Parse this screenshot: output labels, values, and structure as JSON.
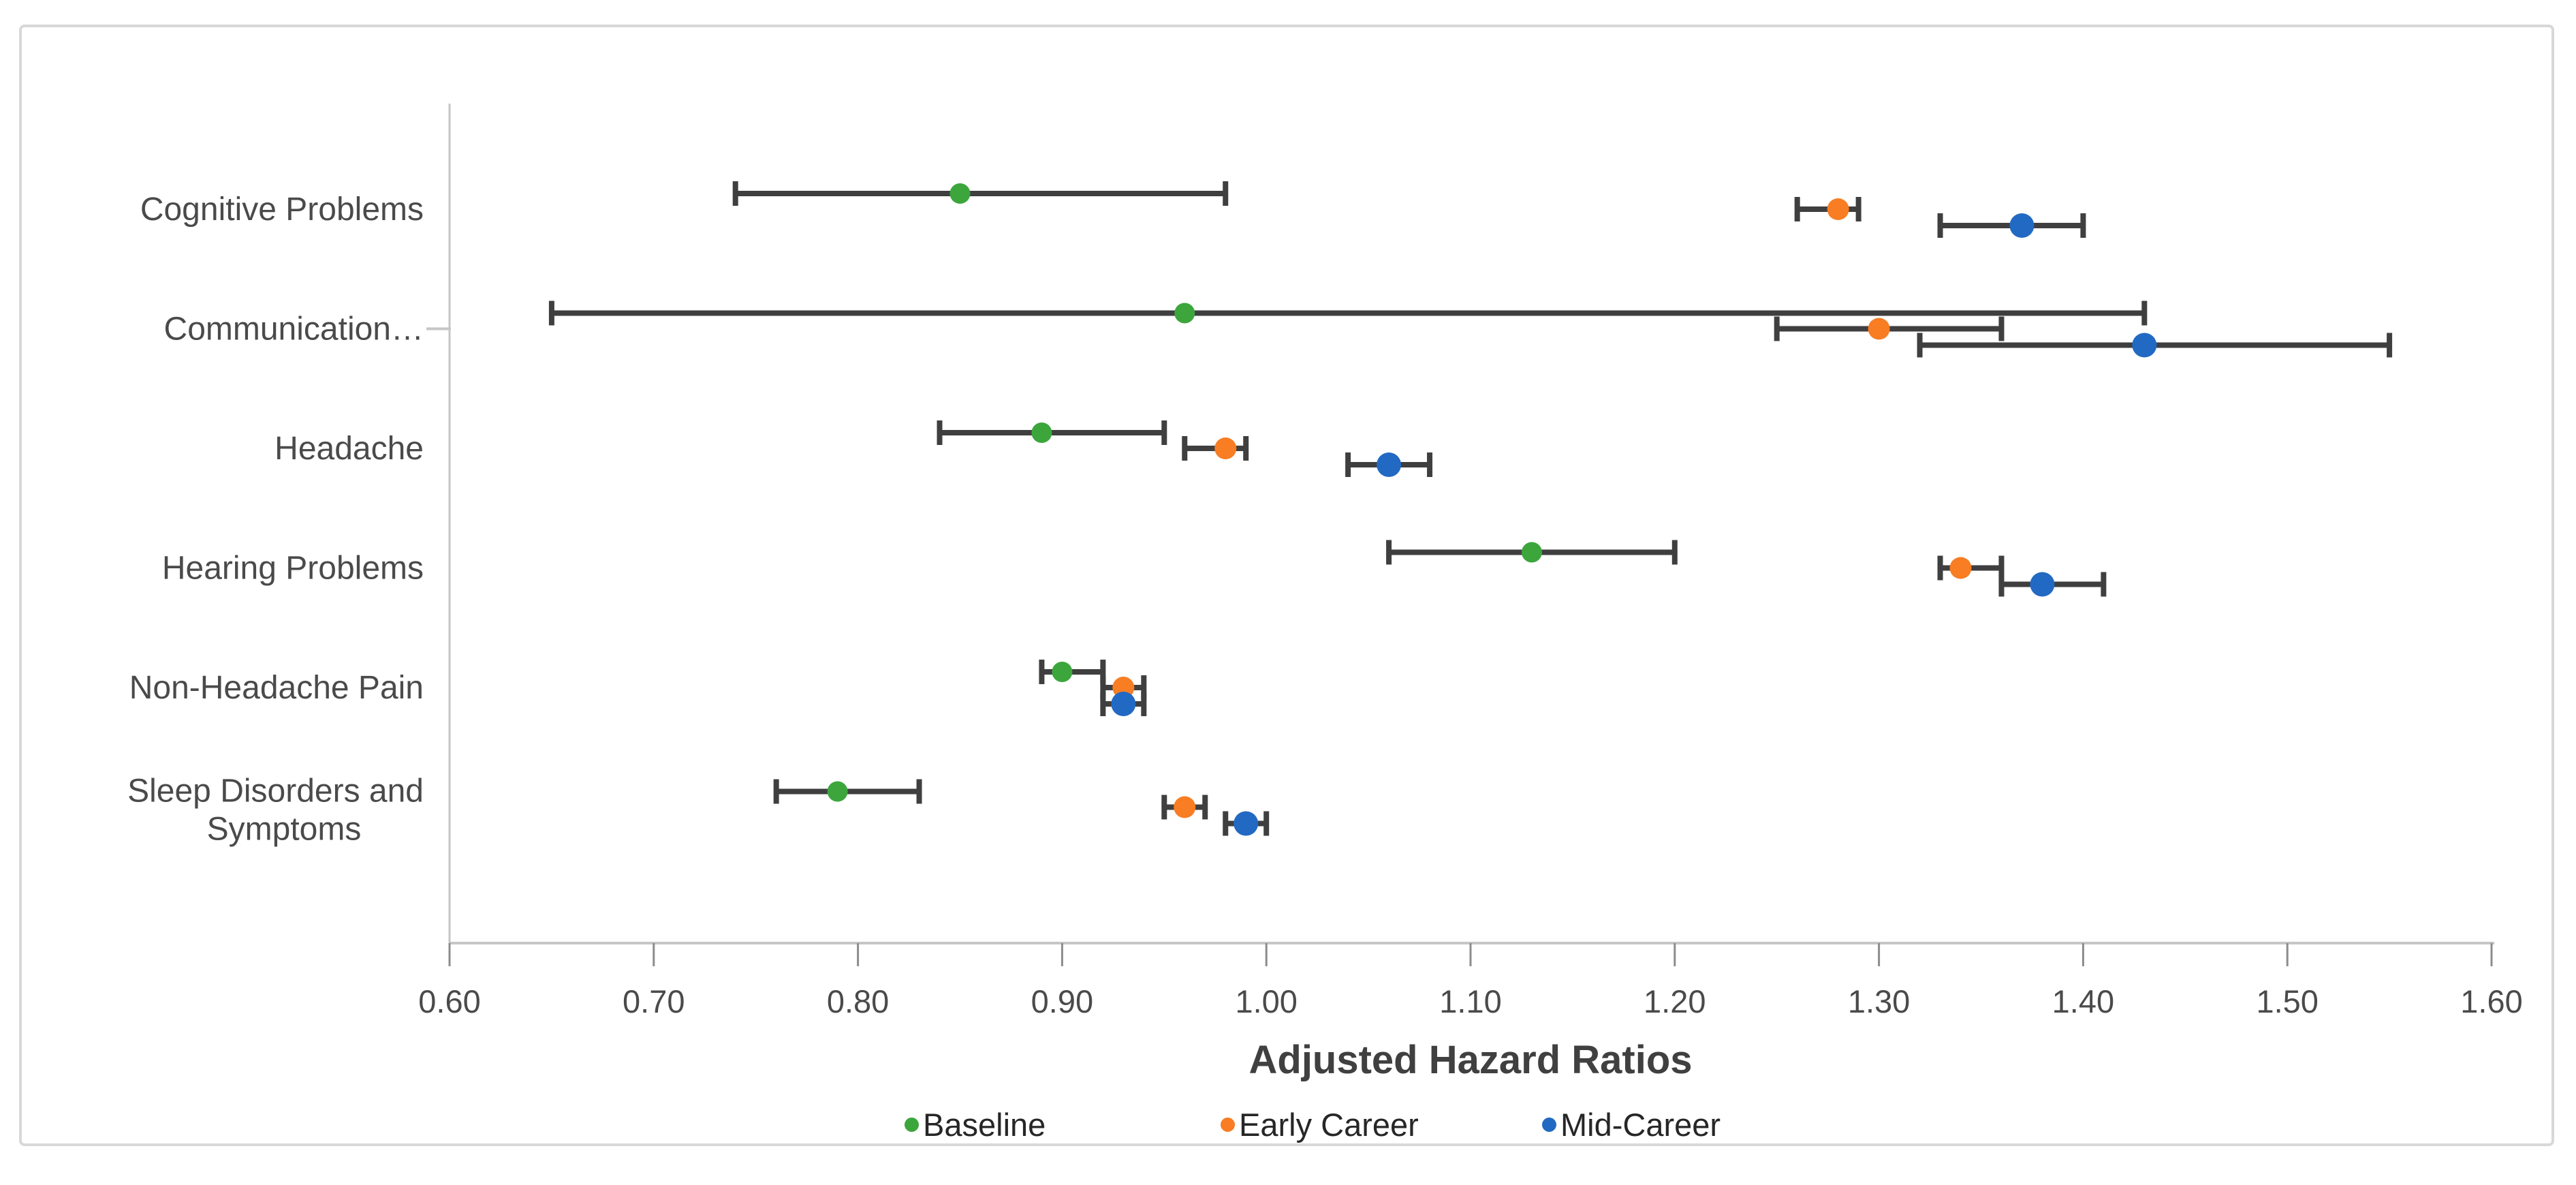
{
  "chart_data": {
    "type": "scatter",
    "variant": "forest-plot-horizontal-error-bars",
    "title": "",
    "xlabel": "Adjusted Hazard Ratios",
    "ylabel": "",
    "x_axis": {
      "min": 0.6,
      "max": 1.6,
      "step": 0.1,
      "tick_label_format": "2-decimals"
    },
    "grid": false,
    "legend_position": "bottom",
    "categories": [
      "Cognitive Problems",
      "Communication…",
      "Headache",
      "Hearing Problems",
      "Non-Headache Pain",
      "Sleep Disorders and\nSymptoms"
    ],
    "series": [
      {
        "name": "Baseline",
        "color": "#3CA63C",
        "marker_radius": 15,
        "points": [
          {
            "hr": 0.85,
            "lo": 0.74,
            "hi": 0.98
          },
          {
            "hr": 0.96,
            "lo": 0.65,
            "hi": 1.43
          },
          {
            "hr": 0.89,
            "lo": 0.84,
            "hi": 0.95
          },
          {
            "hr": 1.13,
            "lo": 1.06,
            "hi": 1.2
          },
          {
            "hr": 0.9,
            "lo": 0.89,
            "hi": 0.92
          },
          {
            "hr": 0.79,
            "lo": 0.76,
            "hi": 0.83
          }
        ]
      },
      {
        "name": "Early Career",
        "color": "#F87D23",
        "marker_radius": 16,
        "points": [
          {
            "hr": 1.28,
            "lo": 1.26,
            "hi": 1.29
          },
          {
            "hr": 1.3,
            "lo": 1.25,
            "hi": 1.36
          },
          {
            "hr": 0.98,
            "lo": 0.96,
            "hi": 0.99
          },
          {
            "hr": 1.34,
            "lo": 1.33,
            "hi": 1.36
          },
          {
            "hr": 0.93,
            "lo": 0.92,
            "hi": 0.94
          },
          {
            "hr": 0.96,
            "lo": 0.95,
            "hi": 0.97
          }
        ]
      },
      {
        "name": "Mid-Career",
        "color": "#2269C3",
        "marker_radius": 18,
        "points": [
          {
            "hr": 1.37,
            "lo": 1.33,
            "hi": 1.4
          },
          {
            "hr": 1.43,
            "lo": 1.32,
            "hi": 1.55
          },
          {
            "hr": 1.06,
            "lo": 1.04,
            "hi": 1.08
          },
          {
            "hr": 1.38,
            "lo": 1.36,
            "hi": 1.41
          },
          {
            "hr": 0.93,
            "lo": 0.92,
            "hi": 0.94
          },
          {
            "hr": 0.99,
            "lo": 0.98,
            "hi": 1.0
          }
        ]
      }
    ],
    "colors": {
      "error_bar": "#3F3F3F",
      "axis_line": "#C6C6C6",
      "tick_mark": "#8C8C8C",
      "tick_label_text": "#4A4A4A",
      "category_label_text": "#4A4A4A"
    }
  },
  "axis": {
    "title": "Adjusted Hazard Ratios"
  },
  "legend": {
    "items": [
      "Baseline",
      "Early Career",
      "Mid-Career"
    ]
  }
}
